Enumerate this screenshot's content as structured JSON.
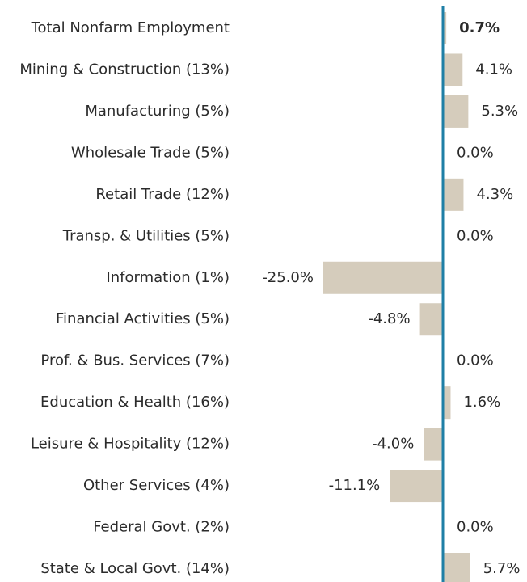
{
  "chart_data": {
    "type": "hbar",
    "categories": [
      "Total Nonfarm Employment",
      "Mining & Construction (13%)",
      "Manufacturing (5%)",
      "Wholesale Trade (5%)",
      "Retail Trade (12%)",
      "Transp. & Utilities (5%)",
      "Information (1%)",
      "Financial Activities (5%)",
      "Prof. & Bus. Services (7%)",
      "Education & Health (16%)",
      "Leisure & Hospitality (12%)",
      "Other Services (4%)",
      "Federal Govt. (2%)",
      "State & Local Govt. (14%)"
    ],
    "values": [
      0.7,
      4.1,
      5.3,
      0.0,
      4.3,
      0.0,
      -25.0,
      -4.8,
      0.0,
      1.6,
      -4.0,
      -11.1,
      0.0,
      5.7
    ],
    "value_labels": [
      "0.7%",
      "4.1%",
      "5.3%",
      "0.0%",
      "4.3%",
      "0.0%",
      "-25.0%",
      "-4.8%",
      "0.0%",
      "1.6%",
      "-4.0%",
      "-11.1%",
      "0.0%",
      "5.7%"
    ],
    "color": "#d5ccbc",
    "axis_color": "#1f7fa6"
  }
}
